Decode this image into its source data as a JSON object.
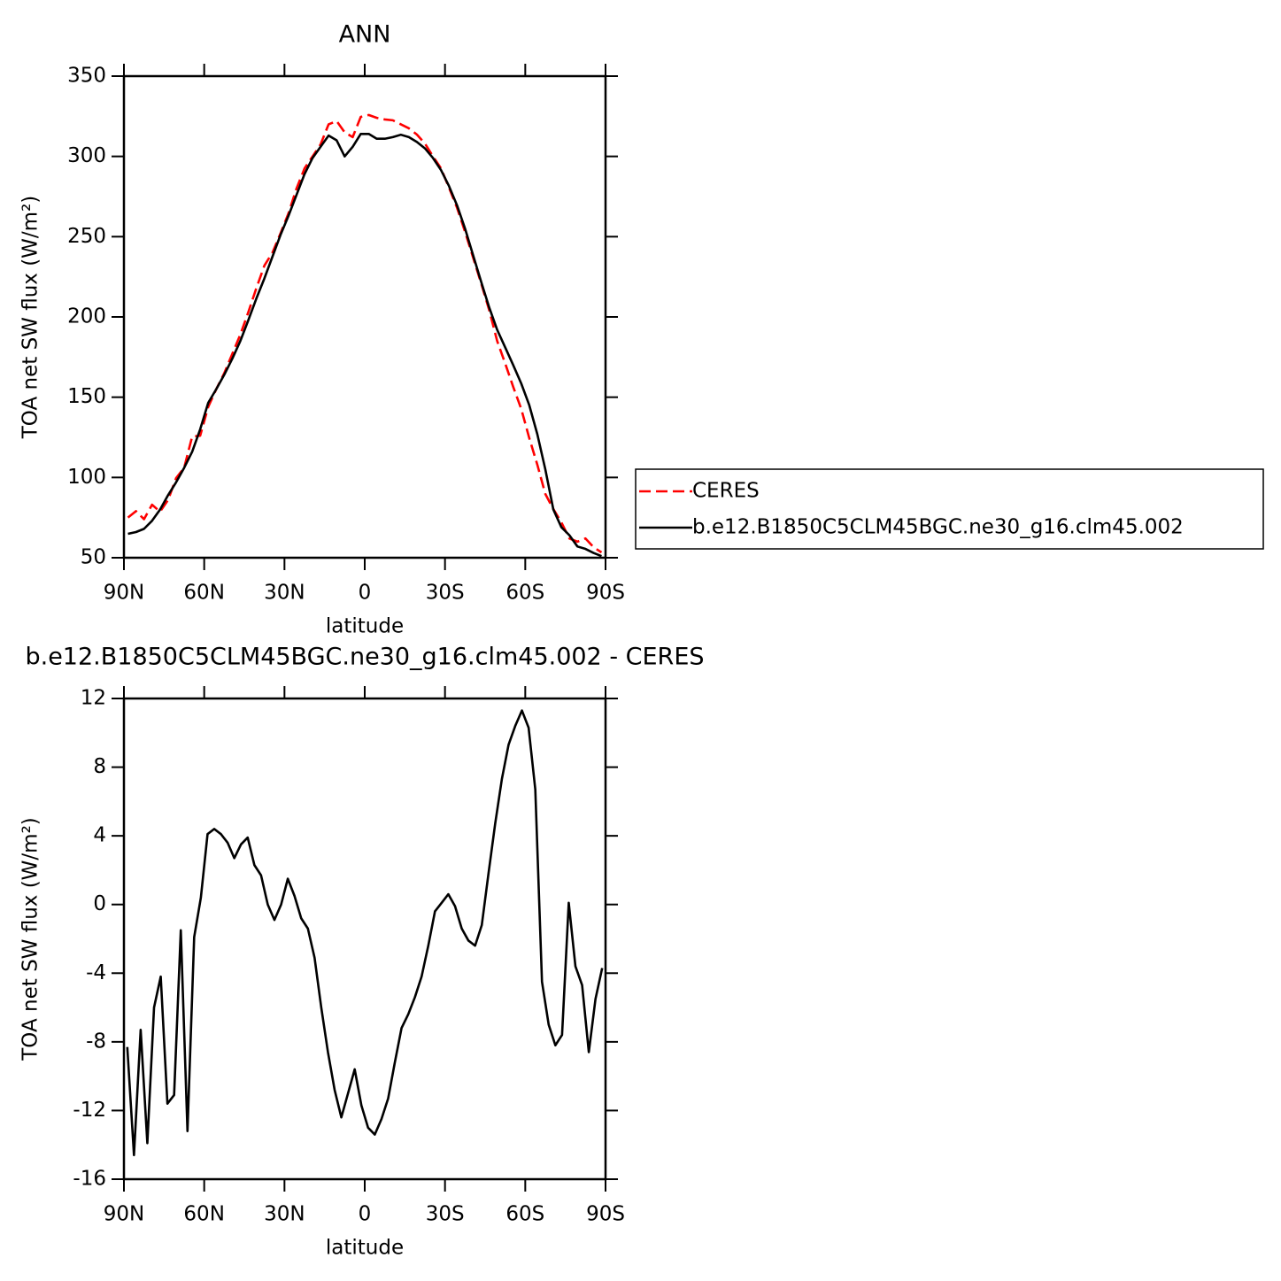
{
  "chart_data": [
    {
      "type": "line",
      "title": "ANN",
      "xlabel": "latitude",
      "ylabel": "TOA net SW flux (W/m²)",
      "x": [
        88.5,
        85.5,
        82.5,
        79.5,
        76.5,
        73.5,
        70.5,
        67.5,
        64.5,
        61.5,
        58.5,
        55.5,
        52.5,
        49.5,
        46.5,
        43.5,
        40.5,
        37.5,
        34.5,
        31.5,
        28.5,
        25.5,
        22.5,
        19.5,
        16.5,
        13.5,
        10.5,
        7.5,
        4.5,
        1.5,
        -1.5,
        -4.5,
        -7.5,
        -10.5,
        -13.5,
        -16.5,
        -19.5,
        -22.5,
        -25.5,
        -28.5,
        -31.5,
        -34.5,
        -37.5,
        -40.5,
        -43.5,
        -46.5,
        -49.5,
        -52.5,
        -55.5,
        -58.5,
        -61.5,
        -64.5,
        -67.5,
        -70.5,
        -73.5,
        -76.5,
        -79.5,
        -82.5,
        -85.5,
        -88.5
      ],
      "series": [
        {
          "name": "CERES",
          "color": "#ff0000",
          "style": "dashed",
          "values": [
            75,
            79,
            74,
            83,
            78.7,
            86,
            99.6,
            106,
            125.5,
            126,
            144,
            155,
            165,
            177,
            189,
            203,
            218,
            232,
            240,
            252,
            264.5,
            280,
            292.5,
            300,
            307.5,
            320,
            322,
            315,
            312,
            324.6,
            325.8,
            324,
            323,
            322.5,
            320,
            317.5,
            313.6,
            308,
            300,
            292.6,
            280.5,
            268,
            253,
            237,
            221,
            204.4,
            185,
            171,
            156.4,
            142.7,
            124.5,
            108,
            89.7,
            80.3,
            72,
            62,
            60,
            62,
            56.6,
            53.3
          ]
        },
        {
          "name": "b.e12.B1850C5CLM45BGC.ne30_g16.clm45.002",
          "color": "#000000",
          "style": "solid",
          "values": [
            64.9,
            66,
            68,
            73,
            80,
            89,
            97,
            106,
            116,
            130,
            146.5,
            155,
            164,
            174,
            185,
            198,
            211.5,
            224,
            237.5,
            251,
            263,
            276,
            289,
            299,
            306,
            313,
            310,
            300,
            306,
            314,
            314,
            311,
            311,
            312,
            313.5,
            312,
            309,
            305,
            299,
            291.5,
            281.5,
            269.5,
            255,
            238.5,
            222,
            206,
            192,
            181,
            170,
            158.5,
            145,
            127,
            105,
            80,
            69,
            64,
            57,
            55.5,
            53,
            51
          ]
        }
      ],
      "xlim": [
        90,
        -90
      ],
      "xticks": [
        {
          "value": 90,
          "label": "90N"
        },
        {
          "value": 60,
          "label": "60N"
        },
        {
          "value": 30,
          "label": "30N"
        },
        0,
        {
          "value": -30,
          "label": "30S"
        },
        {
          "value": -60,
          "label": "60S"
        },
        {
          "value": -90,
          "label": "90S"
        }
      ],
      "ylim": [
        50,
        350
      ],
      "yticks": [
        50,
        100,
        150,
        200,
        250,
        300,
        350
      ],
      "legend": "right"
    },
    {
      "type": "line",
      "title": "b.e12.B1850C5CLM45BGC.ne30_g16.clm45.002 - CERES",
      "xlabel": "latitude",
      "ylabel": "TOA net SW flux (W/m²)",
      "x": [
        88.75,
        86.25,
        83.75,
        81.25,
        78.75,
        76.25,
        73.75,
        71.25,
        68.75,
        66.25,
        63.75,
        61.25,
        58.75,
        56.25,
        53.75,
        51.25,
        48.75,
        46.25,
        43.75,
        41.25,
        38.75,
        36.25,
        33.75,
        31.25,
        28.75,
        26.25,
        23.75,
        21.25,
        18.75,
        16.25,
        13.75,
        11.25,
        8.75,
        6.25,
        3.75,
        1.25,
        -1.25,
        -3.75,
        -6.25,
        -8.75,
        -11.25,
        -13.75,
        -16.25,
        -18.75,
        -21.25,
        -23.75,
        -26.25,
        -28.75,
        -31.25,
        -33.75,
        -36.25,
        -38.75,
        -41.25,
        -43.75,
        -46.25,
        -48.75,
        -51.25,
        -53.75,
        -56.25,
        -58.75,
        -61.25,
        -63.75,
        -66.25,
        -68.75,
        -71.25,
        -73.75,
        -76.25,
        -78.75,
        -81.25,
        -83.75,
        -86.25,
        -88.75
      ],
      "values": [
        -8.3,
        -14.6,
        -7.3,
        -13.9,
        -6,
        -4.2,
        -11.6,
        -11.1,
        -1.5,
        -13.2,
        -1.9,
        0.4,
        4.1,
        4.4,
        4.1,
        3.6,
        2.7,
        3.5,
        3.9,
        2.3,
        1.7,
        0,
        -0.9,
        0,
        1.5,
        0.5,
        -0.8,
        -1.4,
        -3.1,
        -6,
        -8.6,
        -10.8,
        -12.4,
        -11,
        -9.6,
        -11.7,
        -13,
        -13.4,
        -12.5,
        -11.3,
        -9.2,
        -7.2,
        -6.4,
        -5.4,
        -4.2,
        -2.4,
        -0.4,
        0.1,
        0.6,
        -0.1,
        -1.4,
        -2.1,
        -2.4,
        -1.2,
        1.8,
        4.7,
        7.3,
        9.3,
        10.4,
        11.3,
        10.3,
        6.7,
        -4.5,
        -7,
        -8.2,
        -7.6,
        0.1,
        -3.6,
        -4.7,
        -8.6,
        -5.5,
        -3.7
      ],
      "color": "#000000",
      "xlim": [
        90,
        -90
      ],
      "xticks": [
        {
          "value": 90,
          "label": "90N"
        },
        {
          "value": 60,
          "label": "60N"
        },
        {
          "value": 30,
          "label": "30N"
        },
        0,
        {
          "value": -30,
          "label": "30S"
        },
        {
          "value": -60,
          "label": "60S"
        },
        {
          "value": -90,
          "label": "90S"
        }
      ],
      "ylim": [
        -16,
        12
      ],
      "yticks": [
        -16,
        -12,
        -8,
        -4,
        0,
        4,
        8,
        12
      ]
    }
  ]
}
